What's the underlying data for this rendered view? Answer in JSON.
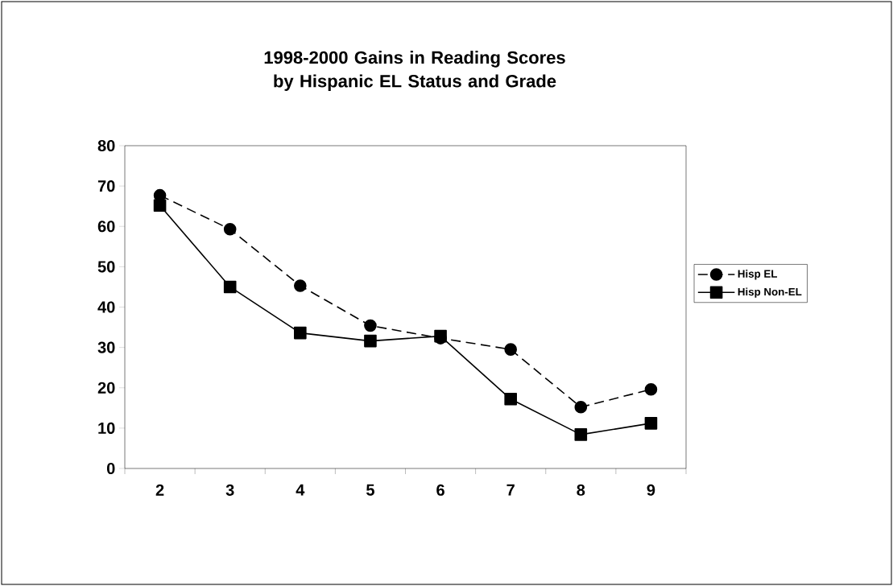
{
  "chart_data": {
    "type": "line",
    "title": "1998-2000 Gains in Reading Scores by Hispanic EL Status and Grade",
    "categories": [
      "2",
      "3",
      "4",
      "5",
      "6",
      "7",
      "8",
      "9"
    ],
    "series": [
      {
        "name": "Hisp EL",
        "color": "#000000",
        "marker": "circle",
        "line_style": "dashed",
        "values": [
          67.7,
          59.3,
          45.3,
          35.4,
          32.3,
          29.5,
          15.2,
          19.6
        ]
      },
      {
        "name": "Hisp Non-EL",
        "color": "#000000",
        "marker": "square",
        "line_style": "solid",
        "values": [
          65.2,
          45.0,
          33.6,
          31.6,
          32.8,
          17.2,
          8.4,
          11.2
        ]
      }
    ],
    "ylim": [
      0,
      80
    ],
    "yticks": [
      0,
      10,
      20,
      30,
      40,
      50,
      60,
      70,
      80
    ],
    "grid": false,
    "legend": "right"
  }
}
